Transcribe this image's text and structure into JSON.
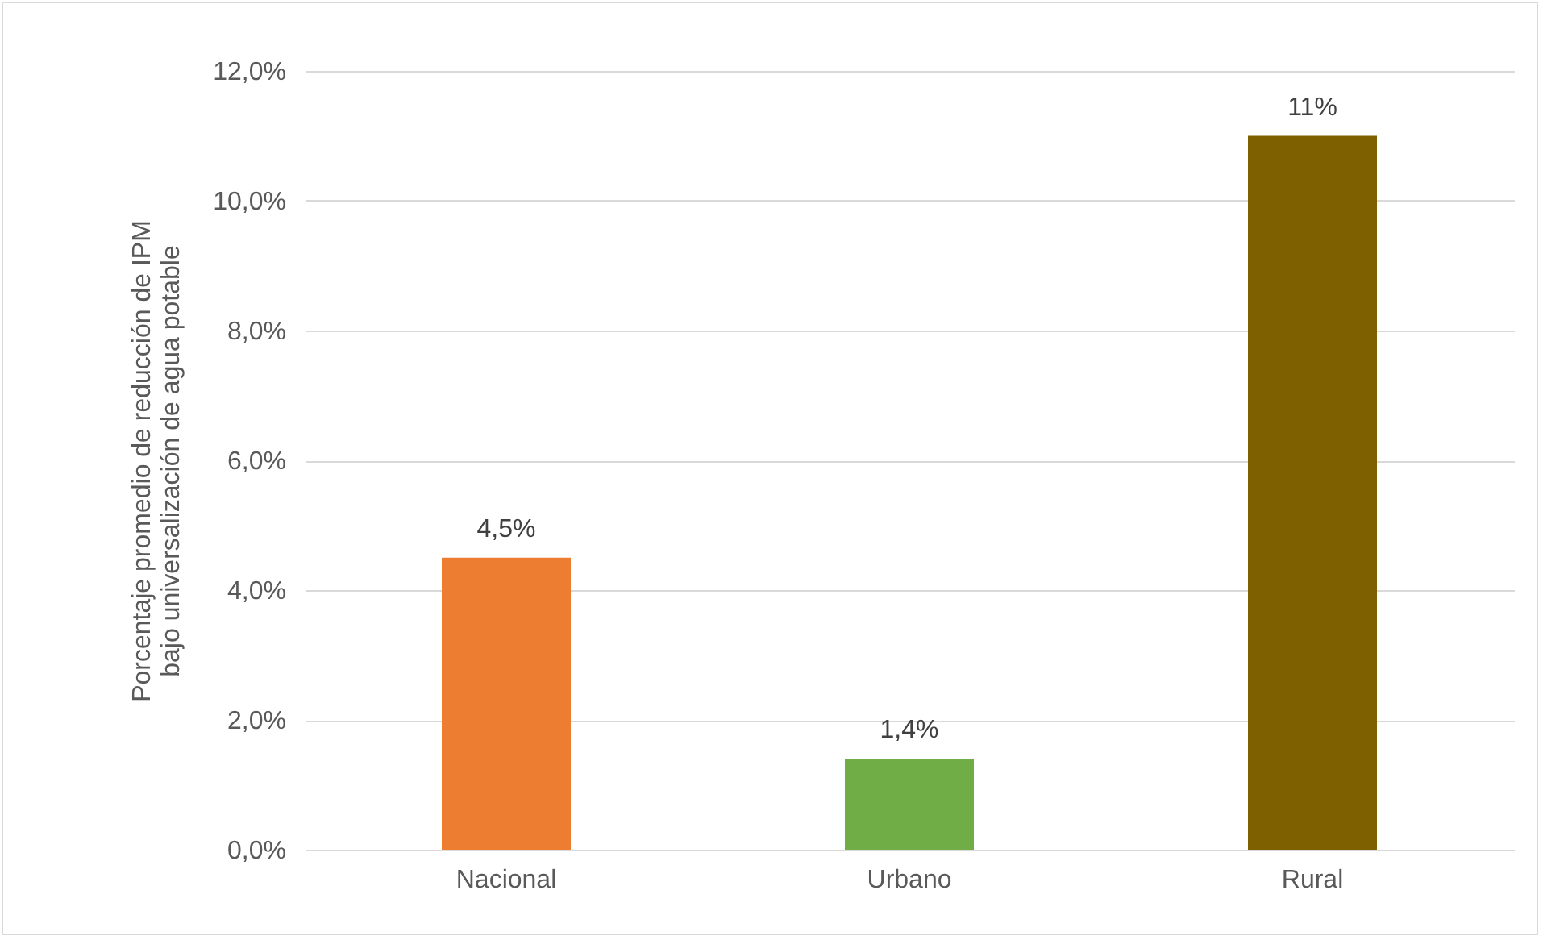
{
  "chart_data": {
    "type": "bar",
    "ylabel": "Porcentaje promedio de reducción de IPM\nbajo universalización de agua potable",
    "categories": [
      "Nacional",
      "Urbano",
      "Rural"
    ],
    "values": [
      4.5,
      1.4,
      11
    ],
    "colors": [
      "#ed7d31",
      "#70ad47",
      "#7f6000"
    ],
    "value_labels": [
      "4,5%",
      "1,4%",
      "11%"
    ],
    "ylim": [
      0,
      12
    ],
    "yticks": [
      {
        "value": 0,
        "label": "0,0%"
      },
      {
        "value": 2,
        "label": "2,0%"
      },
      {
        "value": 4,
        "label": "4,0%"
      },
      {
        "value": 6,
        "label": "6,0%"
      },
      {
        "value": 8,
        "label": "8,0%"
      },
      {
        "value": 10,
        "label": "10,0%"
      },
      {
        "value": 12,
        "label": "12,0%"
      }
    ],
    "grid": "y",
    "legend": false
  }
}
